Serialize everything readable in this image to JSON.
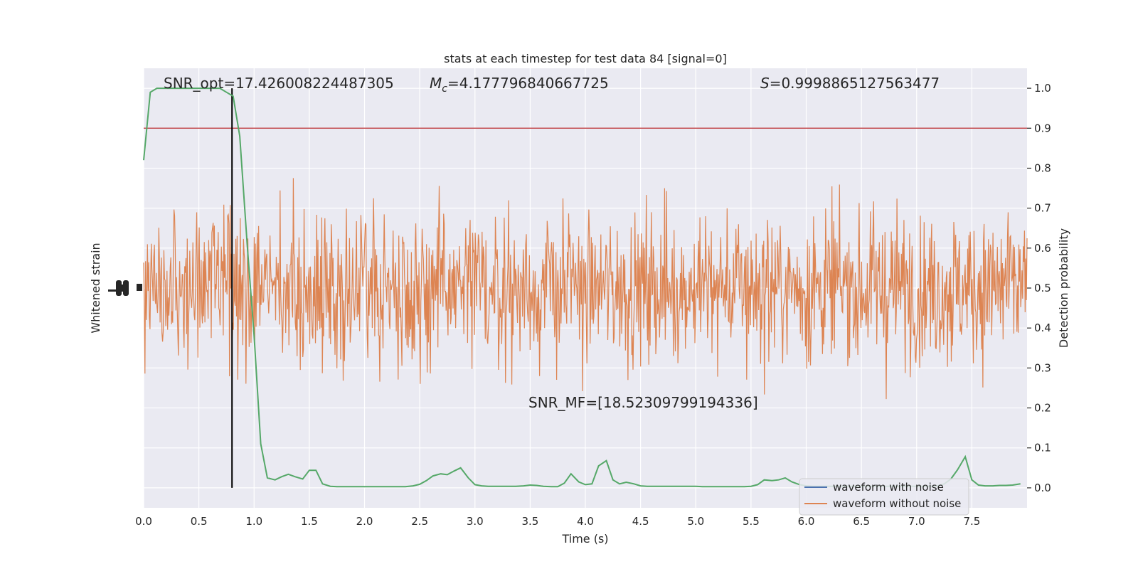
{
  "chart_data": {
    "type": "line",
    "title": "stats at each timestep for test data 84 [signal=0]",
    "xlabel": "Time (s)",
    "ylabel_left": "Whitened strain",
    "ylabel_right": "Detection probability",
    "xlim": [
      0,
      8
    ],
    "ylim_right": [
      -0.05,
      1.05
    ],
    "x_ticks": [
      "0.0",
      "0.5",
      "1.0",
      "1.5",
      "2.0",
      "2.5",
      "3.0",
      "3.5",
      "4.0",
      "4.5",
      "5.0",
      "5.5",
      "6.0",
      "6.5",
      "7.0",
      "7.5"
    ],
    "y_ticks_right": [
      "0.0",
      "0.1",
      "0.2",
      "0.3",
      "0.4",
      "0.5",
      "0.6",
      "0.7",
      "0.8",
      "0.9",
      "1.0"
    ],
    "grid": true,
    "annotations": {
      "snr_opt": "SNR_opt=17.426008224487305",
      "mc_symbol": "M",
      "mc_sub": "c",
      "mc_value": "=4.177796840667725",
      "s_symbol": "S",
      "s_value": "=0.9998865127563477",
      "snr_mf": "SNR_MF=[18.52309799194336]"
    },
    "legend": {
      "placement": "lower-right",
      "entries": [
        "waveform with noise",
        "waveform without noise"
      ]
    },
    "threshold": {
      "value": 0.9,
      "color": "#c44e52"
    },
    "merger_time": 0.8,
    "series": [
      {
        "name": "waveform with noise",
        "color": "#4c72b0",
        "note_values": "whitened strain noise, fully covered by the orange trace",
        "envelope_prob_units": 0.14
      },
      {
        "name": "waveform without noise",
        "color": "#dd8452",
        "envelope_prob_units": 0.14
      },
      {
        "name": "Detection probability",
        "color": "#55a868",
        "x": [
          0.0,
          0.06,
          0.12,
          0.19,
          0.25,
          0.31,
          0.37,
          0.44,
          0.5,
          0.56,
          0.62,
          0.69,
          0.75,
          0.81,
          0.87,
          0.94,
          1.0,
          1.06,
          1.12,
          1.19,
          1.25,
          1.31,
          1.37,
          1.44,
          1.5,
          1.56,
          1.62,
          1.69,
          1.75,
          1.81,
          1.87,
          1.94,
          2.0,
          2.06,
          2.12,
          2.19,
          2.25,
          2.31,
          2.37,
          2.44,
          2.5,
          2.56,
          2.62,
          2.69,
          2.75,
          2.81,
          2.87,
          2.94,
          3.0,
          3.06,
          3.12,
          3.19,
          3.25,
          3.31,
          3.37,
          3.44,
          3.5,
          3.56,
          3.62,
          3.69,
          3.75,
          3.81,
          3.87,
          3.94,
          4.0,
          4.06,
          4.12,
          4.19,
          4.25,
          4.31,
          4.37,
          4.44,
          4.5,
          4.56,
          4.62,
          4.69,
          4.75,
          4.81,
          4.87,
          4.94,
          5.0,
          5.06,
          5.12,
          5.19,
          5.25,
          5.31,
          5.37,
          5.44,
          5.5,
          5.56,
          5.62,
          5.69,
          5.75,
          5.81,
          5.87,
          5.94,
          6.0,
          6.06,
          6.12,
          6.19,
          6.25,
          6.31,
          6.37,
          6.44,
          6.5,
          6.56,
          6.62,
          6.69,
          6.75,
          6.81,
          6.87,
          6.94,
          7.0,
          7.06,
          7.12,
          7.19,
          7.25,
          7.31,
          7.37,
          7.44,
          7.5,
          7.56,
          7.62,
          7.69,
          7.75,
          7.81,
          7.87,
          7.94
        ],
        "values": [
          0.82,
          0.99,
          1.0,
          1.0,
          1.0,
          1.0,
          1.0,
          1.0,
          1.0,
          1.0,
          1.0,
          1.0,
          0.99,
          0.98,
          0.88,
          0.6,
          0.38,
          0.11,
          0.025,
          0.02,
          0.028,
          0.034,
          0.028,
          0.022,
          0.044,
          0.044,
          0.01,
          0.004,
          0.003,
          0.003,
          0.003,
          0.003,
          0.003,
          0.003,
          0.003,
          0.003,
          0.003,
          0.003,
          0.003,
          0.005,
          0.009,
          0.018,
          0.03,
          0.035,
          0.033,
          0.042,
          0.05,
          0.025,
          0.008,
          0.005,
          0.004,
          0.004,
          0.004,
          0.004,
          0.004,
          0.005,
          0.007,
          0.006,
          0.004,
          0.003,
          0.003,
          0.012,
          0.035,
          0.015,
          0.008,
          0.01,
          0.055,
          0.068,
          0.02,
          0.01,
          0.014,
          0.01,
          0.005,
          0.004,
          0.004,
          0.004,
          0.004,
          0.004,
          0.004,
          0.004,
          0.004,
          0.003,
          0.003,
          0.003,
          0.003,
          0.003,
          0.003,
          0.003,
          0.004,
          0.008,
          0.02,
          0.018,
          0.02,
          0.025,
          0.015,
          0.008,
          0.005,
          0.004,
          0.004,
          0.004,
          0.004,
          0.004,
          0.004,
          0.004,
          0.004,
          0.004,
          0.004,
          0.004,
          0.004,
          0.004,
          0.004,
          0.004,
          0.004,
          0.004,
          0.004,
          0.005,
          0.01,
          0.022,
          0.045,
          0.078,
          0.02,
          0.007,
          0.005,
          0.005,
          0.006,
          0.006,
          0.007,
          0.01
        ]
      }
    ]
  }
}
